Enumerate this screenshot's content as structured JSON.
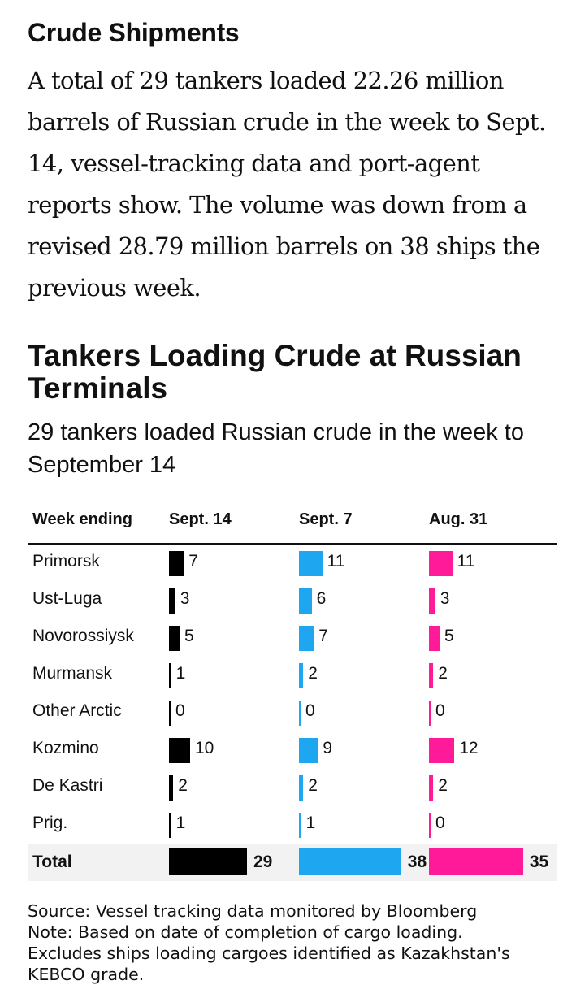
{
  "article": {
    "section_title": "Crude Shipments",
    "body": "A total of 29 tankers loaded 22.26 million barrels of Russian crude in the week to Sept. 14, vessel-tracking data and port-agent reports show. The volume was down from a revised 28.79 million barrels on 38 ships the previous week."
  },
  "chart_data": {
    "type": "bar",
    "title": "Tankers Loading Crude at Russian Terminals",
    "subtitle": "29 tankers loaded Russian crude in the week to September 14",
    "row_header": "Week ending",
    "categories": [
      "Primorsk",
      "Ust-Luga",
      "Novorossiysk",
      "Murmansk",
      "Other Arctic",
      "Kozmino",
      "De Kastri",
      "Prig."
    ],
    "series": [
      {
        "name": "Sept. 14",
        "color": "#000000",
        "values": [
          7,
          3,
          5,
          1,
          0,
          10,
          2,
          1
        ],
        "total": 29
      },
      {
        "name": "Sept. 7",
        "color": "#1ea7f0",
        "values": [
          11,
          6,
          7,
          2,
          0,
          9,
          2,
          1
        ],
        "total": 38
      },
      {
        "name": "Aug. 31",
        "color": "#ff1a9a",
        "values": [
          11,
          3,
          5,
          2,
          0,
          12,
          2,
          0
        ],
        "total": 35
      }
    ],
    "total_label": "Total"
  },
  "notes": {
    "source": "Source: Vessel tracking data monitored by Bloomberg",
    "note_lines": [
      "Note: Based on date of completion of cargo loading.",
      "Excludes ships loading cargoes identified as Kazakhstan's",
      "KEBCO grade."
    ]
  }
}
